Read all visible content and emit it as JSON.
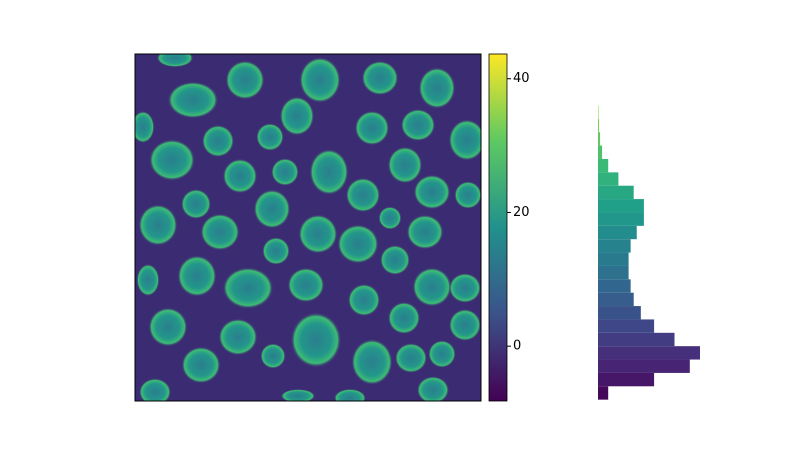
{
  "chart_data": [
    {
      "type": "image",
      "colormap": "viridis",
      "clim": [
        -8.2,
        43.7
      ],
      "cticks": [
        0,
        20,
        40
      ]
    },
    {
      "type": "histogram",
      "orientation": "horizontal",
      "colormap": "viridis",
      "bins": [
        -8,
        -6,
        -4,
        -2,
        0,
        2,
        4,
        6,
        8,
        10,
        12,
        14,
        16,
        18,
        20,
        22,
        24,
        26,
        28,
        30,
        32,
        34,
        36
      ],
      "counts": [
        10,
        55,
        90,
        100,
        75,
        55,
        42,
        35,
        32,
        30,
        30,
        32,
        38,
        45,
        45,
        35,
        20,
        10,
        4,
        2,
        1,
        0.5
      ]
    }
  ]
}
